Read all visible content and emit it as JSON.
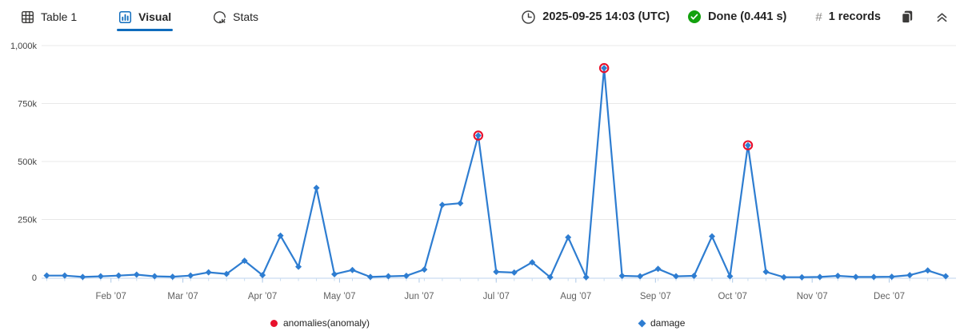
{
  "header": {
    "tabs": [
      {
        "label": "Table 1",
        "icon": "table-grid-icon",
        "active": false
      },
      {
        "label": "Visual",
        "icon": "chart-icon",
        "active": true
      },
      {
        "label": "Stats",
        "icon": "stats-icon",
        "active": false
      }
    ],
    "timestamp": "2025-09-25 14:03 (UTC)",
    "status": "Done (0.441 s)",
    "records_hash": "#",
    "records": "1 records"
  },
  "colors": {
    "accent": "#0f6cbd",
    "line_blue": "#2e7dd1",
    "anomaly_red": "#e8112c",
    "success_green": "#13a10e",
    "gridline": "#e8e8e8",
    "axis_line": "#c9dcf0",
    "axis_tick": "#b4cde9",
    "axis_label": "#616161",
    "y_label": "#424242"
  },
  "chart_data": {
    "type": "line",
    "title": "",
    "xlabel": "",
    "ylabel": "",
    "x_axis": {
      "type": "datetime",
      "min": "2007-01-05",
      "max": "2007-12-27",
      "month_ticks": [
        {
          "date": "2007-02-01",
          "label": "Feb ’07"
        },
        {
          "date": "2007-03-01",
          "label": "Mar ’07"
        },
        {
          "date": "2007-04-01",
          "label": "Apr ’07"
        },
        {
          "date": "2007-05-01",
          "label": "May ’07"
        },
        {
          "date": "2007-06-01",
          "label": "Jun ’07"
        },
        {
          "date": "2007-07-01",
          "label": "Jul ’07"
        },
        {
          "date": "2007-08-01",
          "label": "Aug ’07"
        },
        {
          "date": "2007-09-01",
          "label": "Sep ’07"
        },
        {
          "date": "2007-10-01",
          "label": "Oct ’07"
        },
        {
          "date": "2007-11-01",
          "label": "Nov ’07"
        },
        {
          "date": "2007-12-01",
          "label": "Dec ’07"
        }
      ]
    },
    "y_axis": {
      "ylim": [
        0,
        1000000
      ],
      "ticks": [
        0,
        250000,
        500000,
        750000,
        1000000
      ],
      "tick_labels": [
        "0",
        "250k",
        "500k",
        "750k",
        "1,000k"
      ],
      "grid": true
    },
    "legend": [
      {
        "name": "anomalies(anomaly)",
        "marker": "circle",
        "color": "#e8112c"
      },
      {
        "name": "damage",
        "marker": "diamond",
        "color": "#2e7dd1"
      }
    ],
    "series": [
      {
        "name": "damage",
        "color": "#2e7dd1",
        "points": [
          [
            "2007-01-07",
            8000
          ],
          [
            "2007-01-14",
            8000
          ],
          [
            "2007-01-21",
            2000
          ],
          [
            "2007-01-28",
            5000
          ],
          [
            "2007-02-04",
            8000
          ],
          [
            "2007-02-11",
            12000
          ],
          [
            "2007-02-18",
            5000
          ],
          [
            "2007-02-25",
            3000
          ],
          [
            "2007-03-04",
            8000
          ],
          [
            "2007-03-11",
            22000
          ],
          [
            "2007-03-18",
            15000
          ],
          [
            "2007-03-25",
            72000
          ],
          [
            "2007-04-01",
            10000
          ],
          [
            "2007-04-08",
            180000
          ],
          [
            "2007-04-15",
            46000
          ],
          [
            "2007-04-22",
            386000
          ],
          [
            "2007-04-29",
            14000
          ],
          [
            "2007-05-06",
            32000
          ],
          [
            "2007-05-13",
            2000
          ],
          [
            "2007-05-20",
            5000
          ],
          [
            "2007-05-27",
            7000
          ],
          [
            "2007-06-03",
            34000
          ],
          [
            "2007-06-10",
            313000
          ],
          [
            "2007-06-17",
            320000
          ],
          [
            "2007-06-24",
            612000
          ],
          [
            "2007-07-01",
            24000
          ],
          [
            "2007-07-08",
            21000
          ],
          [
            "2007-07-15",
            65000
          ],
          [
            "2007-07-22",
            1000
          ],
          [
            "2007-07-29",
            173000
          ],
          [
            "2007-08-05",
            1000
          ],
          [
            "2007-08-12",
            903000
          ],
          [
            "2007-08-19",
            7000
          ],
          [
            "2007-08-26",
            5000
          ],
          [
            "2007-09-02",
            37000
          ],
          [
            "2007-09-09",
            5000
          ],
          [
            "2007-09-16",
            7000
          ],
          [
            "2007-09-23",
            177000
          ],
          [
            "2007-09-30",
            5000
          ],
          [
            "2007-10-07",
            570000
          ],
          [
            "2007-10-14",
            24000
          ],
          [
            "2007-10-21",
            1000
          ],
          [
            "2007-10-28",
            1000
          ],
          [
            "2007-11-04",
            2000
          ],
          [
            "2007-11-11",
            7000
          ],
          [
            "2007-11-18",
            2000
          ],
          [
            "2007-11-25",
            2000
          ],
          [
            "2007-12-02",
            3000
          ],
          [
            "2007-12-09",
            10000
          ],
          [
            "2007-12-16",
            30000
          ],
          [
            "2007-12-23",
            5000
          ]
        ]
      }
    ],
    "anomalies": {
      "name": "anomalies(anomaly)",
      "color": "#e8112c",
      "points": [
        [
          "2007-06-24",
          612000
        ],
        [
          "2007-08-12",
          903000
        ],
        [
          "2007-10-07",
          570000
        ]
      ]
    }
  }
}
